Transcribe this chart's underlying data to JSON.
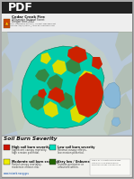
{
  "title": "Cedar Creek Fire Soil Burn Severity",
  "legend_title": "Soil Burn Severity",
  "legend_items": [
    {
      "label": "High soil burn severity",
      "color": "#cc1100"
    },
    {
      "label": "Moderate soil burn severity",
      "color": "#eeee00"
    },
    {
      "label": "Low soil burn severity",
      "color": "#00ddbb"
    },
    {
      "label": "Very low / Unburned",
      "color": "#226600"
    }
  ],
  "background_color": "#f5f5f0",
  "page_bg": "#aaaaaa",
  "terrain_light": "#c8d4c8",
  "terrain_gray": "#a8b4a8",
  "terrain_dark": "#889488",
  "lake_blue": "#88b8d8",
  "fire_teal": "#00ccaa",
  "fire_green": "#338844",
  "fire_dark_green": "#224422",
  "fire_red": "#cc2200",
  "fire_yellow": "#dddd00",
  "header_bg": "#222222",
  "subheader_bg": "#eeeeee",
  "legend_bg": "#f0f0ec",
  "map_bg": "#b8c8d8"
}
